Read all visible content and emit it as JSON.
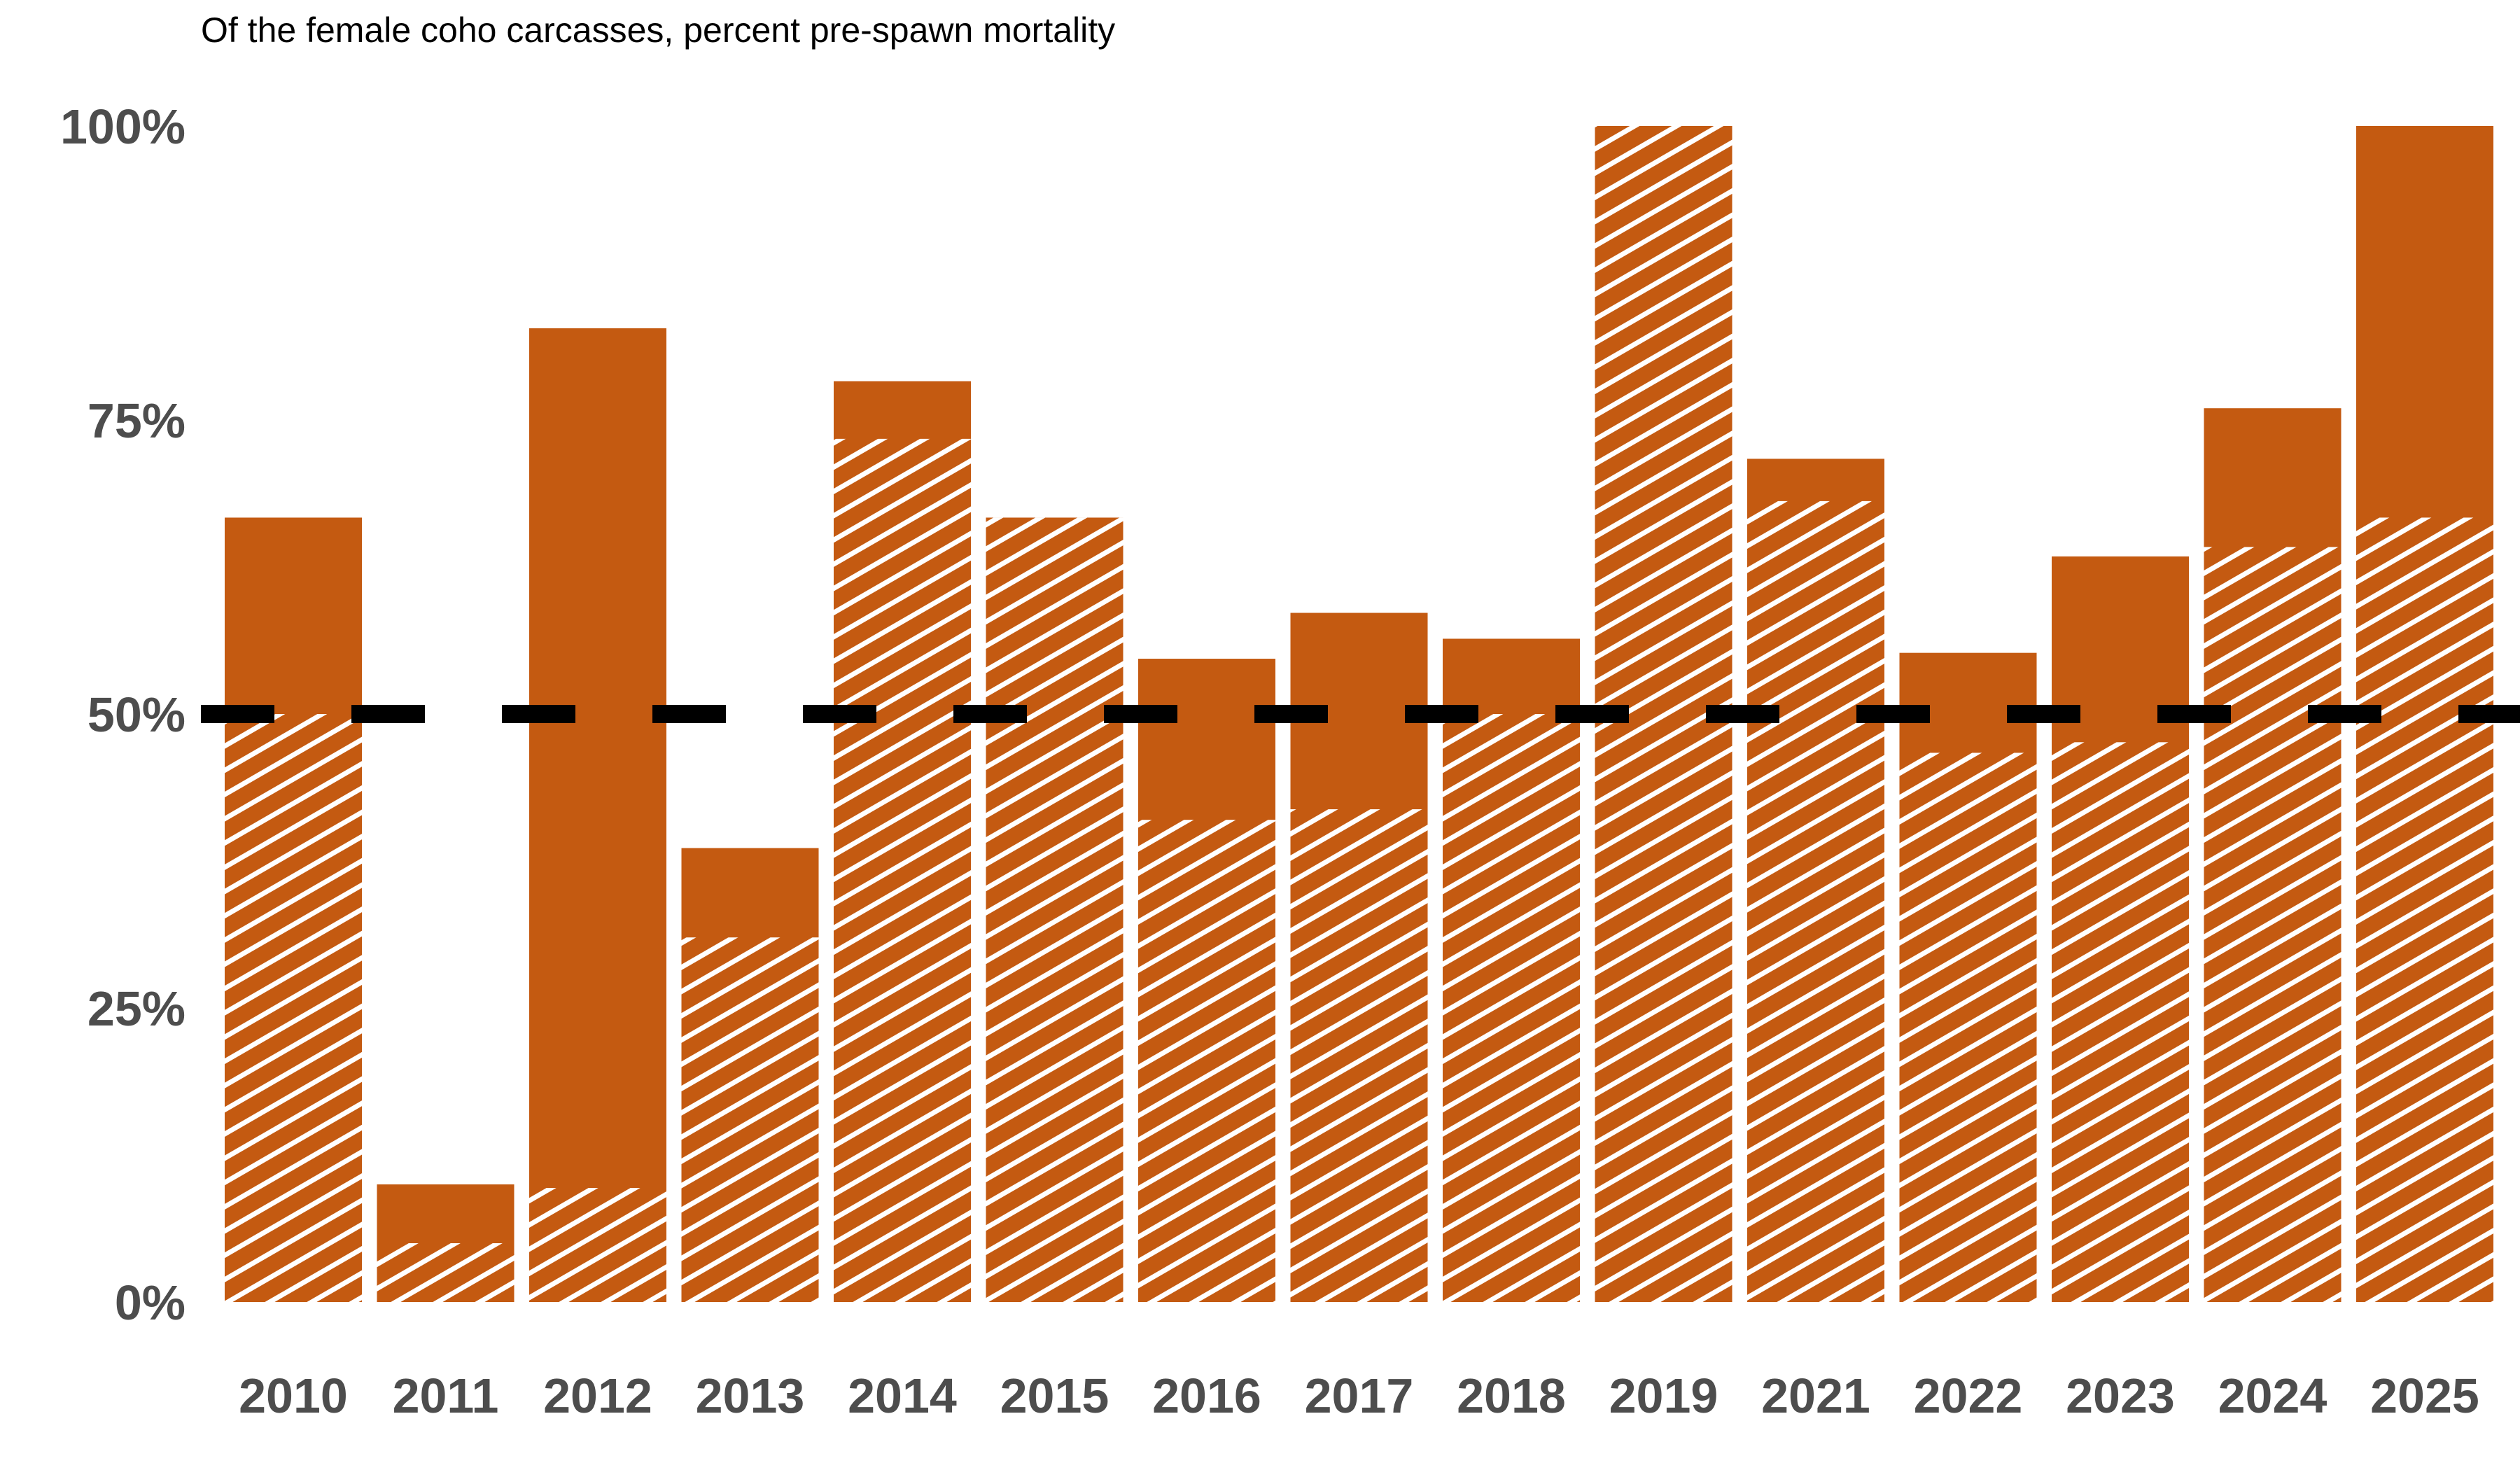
{
  "chart_data": {
    "type": "bar",
    "title": "Of the female coho carcasses, percent pre-spawn mortality",
    "xlabel": "",
    "ylabel": "",
    "categories": [
      "2010",
      "2011",
      "2012",
      "2013",
      "2014",
      "2015",
      "2016",
      "2017",
      "2018",
      "2019",
      "2021",
      "2022",
      "2023",
      "2024",
      "2025"
    ],
    "series": [
      {
        "values": [
          66.7,
          10.0,
          82.8,
          38.6,
          78.3,
          66.7,
          54.7,
          58.6,
          56.4,
          100,
          71.7,
          55.2,
          63.4,
          76.0,
          100
        ]
      },
      {
        "pattern": "hatched",
        "values": [
          50.0,
          5.0,
          9.7,
          31.0,
          73.4,
          66.7,
          41.0,
          41.9,
          50.0,
          100,
          68.1,
          46.7,
          47.6,
          64.2,
          66.7
        ]
      }
    ],
    "yticks": [
      "0%",
      "25%",
      "50%",
      "75%",
      "100%"
    ],
    "ytick_values": [
      0,
      25,
      50,
      75,
      100
    ],
    "ylim": [
      0,
      100
    ],
    "reference_line": {
      "value": 50,
      "style": "dashed",
      "color": "#000000"
    },
    "colors": {
      "bar": "#c45a11",
      "hatch": "#ffffff",
      "tick_text": "#4d4d4d"
    },
    "grid": false,
    "legend": "none"
  }
}
